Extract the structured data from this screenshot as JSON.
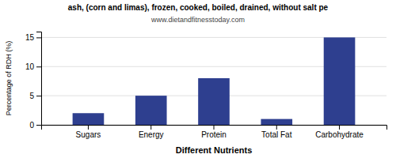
{
  "chart_data": {
    "type": "bar",
    "title": "ash, (corn and limas), frozen, cooked, boiled, drained, without salt pe",
    "subtitle": "www.dietandfitnesstoday.com",
    "xlabel": "Different Nutrients",
    "ylabel": "Percentage of RDH (%)",
    "categories": [
      "Sugars",
      "Energy",
      "Protein",
      "Total Fat",
      "Carbohydrate"
    ],
    "values": [
      2,
      5,
      8,
      1,
      15
    ],
    "color": "#2e3f8f",
    "ylim": [
      0,
      16
    ],
    "yticks": [
      0,
      5,
      10,
      15
    ],
    "grid": true
  }
}
